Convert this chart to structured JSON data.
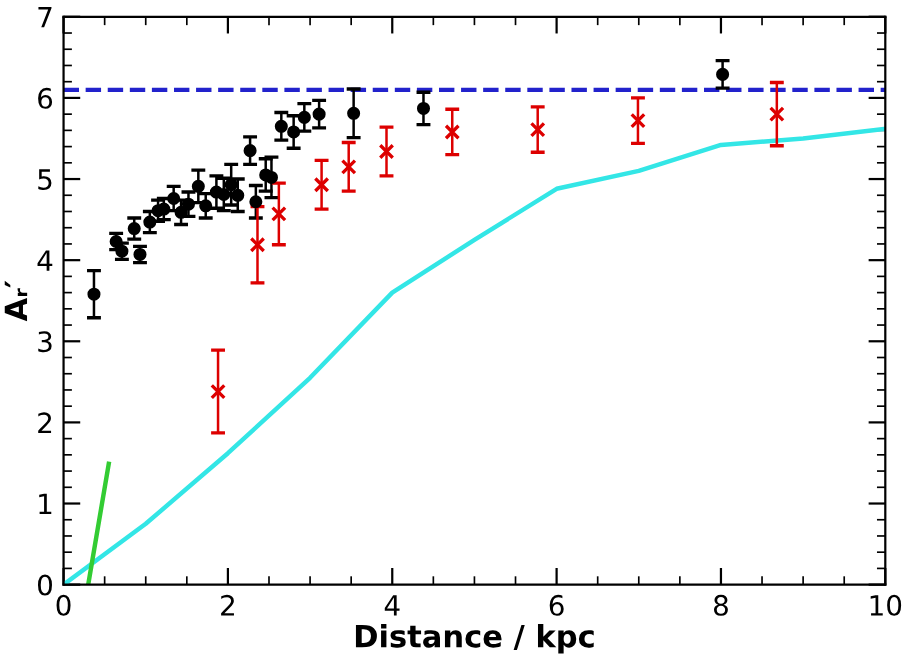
{
  "chart_data": {
    "type": "scatter",
    "xlabel": "Distance / kpc",
    "ylabel": "Aᵣ′",
    "xlim": [
      0,
      10
    ],
    "ylim": [
      0,
      7
    ],
    "xticks": [
      0,
      2,
      4,
      6,
      8,
      10
    ],
    "yticks": [
      0,
      1,
      2,
      3,
      4,
      5,
      6,
      7
    ],
    "grid": false,
    "legend": false,
    "series": [
      {
        "type": "line",
        "color": "#33e6e6",
        "x": [
          0,
          1,
          2,
          3,
          4,
          5,
          6,
          7,
          8,
          9,
          10
        ],
        "values": [
          0,
          0.75,
          1.62,
          2.55,
          3.6,
          4.25,
          4.88,
          5.1,
          5.42,
          5.5,
          5.62
        ],
        "marker": "none",
        "line_style": "solid"
      },
      {
        "type": "line",
        "color": "#33cc33",
        "x": [
          0.3,
          0.55
        ],
        "values": [
          0,
          1.49
        ],
        "marker": "none",
        "line_style": "solid"
      },
      {
        "color": "#000000",
        "marker": "circle",
        "x": [
          0.37,
          0.64,
          0.71,
          0.86,
          0.93,
          1.05,
          1.15,
          1.22,
          1.34,
          1.43,
          1.52,
          1.64,
          1.73,
          1.86,
          1.95,
          2.04,
          2.12,
          2.27,
          2.34,
          2.46,
          2.53,
          2.65,
          2.8,
          2.93,
          3.11,
          3.53,
          4.38,
          8.02
        ],
        "values": [
          3.58,
          4.23,
          4.11,
          4.39,
          4.07,
          4.47,
          4.61,
          4.63,
          4.76,
          4.59,
          4.69,
          4.91,
          4.67,
          4.84,
          4.81,
          4.93,
          4.8,
          5.35,
          4.72,
          5.05,
          5.02,
          5.65,
          5.58,
          5.76,
          5.8,
          5.81,
          5.87,
          6.29
        ],
        "errors": [
          0.29,
          0.1,
          0.1,
          0.13,
          0.1,
          0.13,
          0.13,
          0.13,
          0.15,
          0.15,
          0.15,
          0.2,
          0.15,
          0.2,
          0.2,
          0.25,
          0.2,
          0.17,
          0.2,
          0.2,
          0.25,
          0.17,
          0.2,
          0.17,
          0.17,
          0.3,
          0.2,
          0.17
        ]
      },
      {
        "color": "#dd0000",
        "marker": "cross",
        "x": [
          1.88,
          2.36,
          2.62,
          3.14,
          3.47,
          3.93,
          4.73,
          5.77,
          6.99,
          8.68
        ],
        "values": [
          2.38,
          4.19,
          4.57,
          4.93,
          5.15,
          5.34,
          5.58,
          5.61,
          5.72,
          5.8
        ],
        "errors": [
          0.51,
          0.47,
          0.38,
          0.3,
          0.3,
          0.3,
          0.28,
          0.28,
          0.28,
          0.39
        ]
      }
    ],
    "ref_lines": [
      {
        "axis": "y",
        "value": 6.1,
        "color": "#2222cc",
        "line_style": "dashed"
      }
    ]
  }
}
